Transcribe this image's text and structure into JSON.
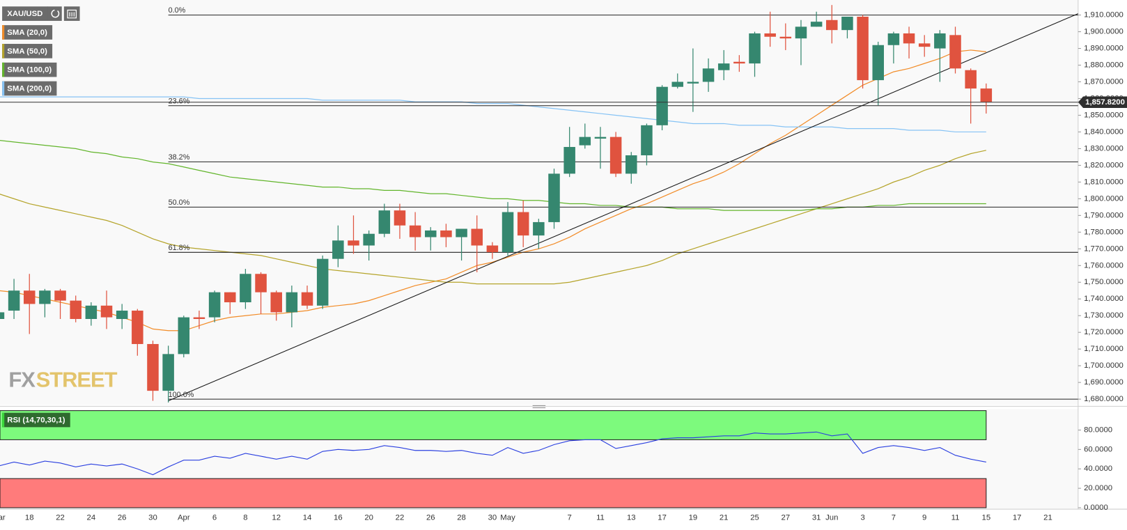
{
  "chart_data": [
    {
      "type": "candlestick",
      "name": "XAU/USD",
      "up_color": "#35876f",
      "down_color": "#e0533f",
      "categories": [
        "Mar",
        null,
        "18",
        null,
        "22",
        null,
        "24",
        null,
        "26",
        null,
        "30",
        null,
        "Apr",
        null,
        "6",
        null,
        "8",
        null,
        "12",
        null,
        "14",
        null,
        "16",
        null,
        "20",
        null,
        "22",
        null,
        "26",
        null,
        "28",
        null,
        "30",
        "May",
        null,
        null,
        null,
        "7",
        null,
        "11",
        null,
        "13",
        null,
        "17",
        null,
        "19",
        null,
        "21",
        null,
        "25",
        null,
        "27",
        null,
        "31",
        "Jun",
        null,
        "3",
        null,
        "7",
        null,
        "9",
        null,
        "11",
        null,
        "15",
        null,
        "17",
        null,
        "21"
      ],
      "open": [
        1728,
        1733,
        1745,
        1737,
        1745,
        1739,
        1728,
        1736,
        1728,
        1733,
        1713,
        1685,
        1707,
        1729,
        1729,
        1744,
        1738,
        1755,
        1744,
        1732,
        1744,
        1736,
        1764,
        1775,
        1772,
        1779,
        1793,
        1784,
        1777,
        1781,
        1777,
        1782,
        1772,
        1768,
        1792,
        1778,
        1786,
        1815,
        1832,
        1836,
        1837,
        1815,
        1826,
        1844,
        1867,
        1869,
        1870,
        1877,
        1882,
        1881,
        1899,
        1897,
        1896,
        1903,
        1907,
        1901,
        1909,
        1871,
        1892,
        1899,
        1893,
        1890,
        1898,
        1877,
        1866,
        null,
        null,
        null,
        null
      ],
      "high": [
        1738,
        1752,
        1755,
        1746,
        1746,
        1742,
        1738,
        1745,
        1737,
        1734,
        1715,
        1712,
        1730,
        1733,
        1745,
        1744,
        1758,
        1756,
        1745,
        1748,
        1748,
        1766,
        1784,
        1790,
        1781,
        1797,
        1797,
        1792,
        1783,
        1785,
        1782,
        1790,
        1774,
        1798,
        1799,
        1788,
        1818,
        1843,
        1845,
        1843,
        1840,
        1828,
        1845,
        1868,
        1875,
        1890,
        1884,
        1889,
        1886,
        1900,
        1912,
        1905,
        1907,
        1912,
        1916,
        1909,
        1910,
        1894,
        1900,
        1903,
        1898,
        1901,
        1903,
        1878,
        1869,
        null,
        null,
        null,
        null
      ],
      "low": [
        1722,
        1728,
        1719,
        1729,
        1728,
        1726,
        1724,
        1722,
        1722,
        1706,
        1679,
        1678,
        1705,
        1722,
        1726,
        1731,
        1734,
        1731,
        1727,
        1723,
        1734,
        1734,
        1759,
        1767,
        1763,
        1777,
        1776,
        1769,
        1769,
        1771,
        1763,
        1756,
        1764,
        1766,
        1771,
        1770,
        1782,
        1813,
        1830,
        1818,
        1813,
        1809,
        1820,
        1841,
        1866,
        1852,
        1864,
        1871,
        1876,
        1873,
        1891,
        1889,
        1880,
        1903,
        1893,
        1896,
        1866,
        1856,
        1881,
        1884,
        1885,
        1870,
        1875,
        1845,
        1851,
        null,
        null,
        null,
        null
      ],
      "close": [
        1732,
        1745,
        1737,
        1745,
        1739,
        1728,
        1736,
        1729,
        1733,
        1713,
        1685,
        1707,
        1729,
        1728,
        1744,
        1738,
        1755,
        1744,
        1732,
        1744,
        1736,
        1764,
        1775,
        1772,
        1779,
        1793,
        1784,
        1777,
        1781,
        1777,
        1782,
        1772,
        1768,
        1792,
        1778,
        1786,
        1815,
        1831,
        1837,
        1837,
        1815,
        1826,
        1844,
        1867,
        1870,
        1870,
        1878,
        1881,
        1881,
        1899,
        1897,
        1896,
        1903,
        1906,
        1901,
        1909,
        1871,
        1892,
        1899,
        1893,
        1891,
        1899,
        1878,
        1866,
        1858,
        null,
        null,
        null,
        null
      ],
      "overlays": [
        {
          "name": "SMA (20,0)",
          "color": "#f28c28",
          "values": [
            1745,
            1744,
            1742,
            1740,
            1738,
            1736,
            1734,
            1732,
            1729,
            1726,
            1722,
            1721,
            1721,
            1724,
            1727,
            1729,
            1730,
            1731,
            1731,
            1732,
            1733,
            1735,
            1736,
            1737,
            1739,
            1742,
            1745,
            1748,
            1750,
            1752,
            1756,
            1760,
            1762,
            1765,
            1768,
            1770,
            1773,
            1777,
            1782,
            1786,
            1790,
            1794,
            1797,
            1801,
            1805,
            1809,
            1812,
            1816,
            1821,
            1827,
            1833,
            1838,
            1844,
            1850,
            1856,
            1862,
            1868,
            1872,
            1876,
            1878,
            1881,
            1884,
            1888,
            1889,
            1888,
            null,
            null,
            null,
            null
          ]
        },
        {
          "name": "SMA (50,0)",
          "color": "#b5a42a",
          "values": [
            1803,
            1800,
            1797,
            1795,
            1793,
            1791,
            1789,
            1787,
            1784,
            1780,
            1776,
            1773,
            1771,
            1770,
            1769,
            1768,
            1767,
            1766,
            1764,
            1762,
            1760,
            1758,
            1757,
            1756,
            1755,
            1754,
            1753,
            1752,
            1751,
            1750,
            1750,
            1749,
            1749,
            1749,
            1749,
            1749,
            1749,
            1750,
            1752,
            1754,
            1756,
            1758,
            1760,
            1763,
            1767,
            1770,
            1773,
            1776,
            1779,
            1782,
            1785,
            1788,
            1791,
            1794,
            1797,
            1800,
            1803,
            1806,
            1810,
            1813,
            1817,
            1820,
            1824,
            1827,
            1829,
            null,
            null,
            null,
            null
          ]
        },
        {
          "name": "SMA (100,0)",
          "color": "#62b52b",
          "values": [
            1835,
            1834,
            1833,
            1832,
            1831,
            1830,
            1828,
            1827,
            1825,
            1824,
            1822,
            1821,
            1819,
            1817,
            1815,
            1813,
            1812,
            1811,
            1810,
            1809,
            1808,
            1807,
            1807,
            1806,
            1806,
            1805,
            1805,
            1804,
            1803,
            1803,
            1802,
            1801,
            1800,
            1800,
            1799,
            1799,
            1798,
            1797,
            1797,
            1796,
            1796,
            1795,
            1795,
            1795,
            1794,
            1794,
            1794,
            1793,
            1793,
            1793,
            1793,
            1793,
            1793,
            1794,
            1794,
            1795,
            1795,
            1796,
            1796,
            1797,
            1797,
            1797,
            1797,
            1797,
            1797,
            null,
            null,
            null,
            null
          ]
        },
        {
          "name": "SMA (200,0)",
          "color": "#86c3f5",
          "values": [
            1861,
            1861,
            1861,
            1861,
            1861,
            1861,
            1861,
            1861,
            1861,
            1861,
            1861,
            1861,
            1861,
            1860,
            1860,
            1860,
            1860,
            1860,
            1860,
            1860,
            1860,
            1859,
            1859,
            1859,
            1859,
            1859,
            1859,
            1858,
            1858,
            1858,
            1858,
            1857,
            1857,
            1857,
            1856,
            1855,
            1854,
            1853,
            1852,
            1851,
            1850,
            1849,
            1848,
            1847,
            1846,
            1845,
            1845,
            1845,
            1844,
            1844,
            1844,
            1843,
            1843,
            1843,
            1843,
            1842,
            1842,
            1842,
            1842,
            1841,
            1841,
            1841,
            1840,
            1840,
            1840,
            null,
            null,
            null,
            null
          ]
        }
      ],
      "fib_levels": [
        {
          "value": 1910,
          "label": "0.0%"
        },
        {
          "value": 1855.7,
          "label": "23.6%"
        },
        {
          "value": 1822.1,
          "label": "38.2%"
        },
        {
          "value": 1795,
          "label": "50.0%"
        },
        {
          "value": 1767.9,
          "label": "61.8%"
        },
        {
          "value": 1680,
          "label": "100.0%"
        }
      ],
      "trendline": [
        {
          "x": 11,
          "y": 1679
        },
        {
          "x": 70,
          "y": 1911
        }
      ],
      "last_price": {
        "value": 1857.82,
        "label": "1,857.8200"
      },
      "watermark": [
        "FX",
        "STREET"
      ],
      "ylim": [
        1677,
        1919
      ],
      "yticks": [
        {
          "value": 1680,
          "label": "1,680.0000"
        },
        {
          "value": 1690,
          "label": "1,690.0000"
        },
        {
          "value": 1700,
          "label": "1,700.0000"
        },
        {
          "value": 1710,
          "label": "1,710.0000"
        },
        {
          "value": 1720,
          "label": "1,720.0000"
        },
        {
          "value": 1730,
          "label": "1,730.0000"
        },
        {
          "value": 1740,
          "label": "1,740.0000"
        },
        {
          "value": 1750,
          "label": "1,750.0000"
        },
        {
          "value": 1760,
          "label": "1,760.0000"
        },
        {
          "value": 1770,
          "label": "1,770.0000"
        },
        {
          "value": 1780,
          "label": "1,780.0000"
        },
        {
          "value": 1790,
          "label": "1,790.0000"
        },
        {
          "value": 1800,
          "label": "1,800.0000"
        },
        {
          "value": 1810,
          "label": "1,810.0000"
        },
        {
          "value": 1820,
          "label": "1,820.0000"
        },
        {
          "value": 1830,
          "label": "1,830.0000"
        },
        {
          "value": 1840,
          "label": "1,840.0000"
        },
        {
          "value": 1850,
          "label": "1,850.0000"
        },
        {
          "value": 1860,
          "label": "1,860.0000"
        },
        {
          "value": 1870,
          "label": "1,870.0000"
        },
        {
          "value": 1880,
          "label": "1,880.0000"
        },
        {
          "value": 1890,
          "label": "1,890.0000"
        },
        {
          "value": 1900,
          "label": "1,900.0000"
        },
        {
          "value": 1910,
          "label": "1,910.0000"
        }
      ]
    },
    {
      "type": "line",
      "name": "RSI (14,70,30,1)",
      "color": "#2a3fe0",
      "values": [
        43,
        47,
        44,
        48,
        46,
        42,
        45,
        43,
        45,
        40,
        34,
        42,
        49,
        49,
        53,
        51,
        56,
        53,
        50,
        53,
        50,
        58,
        60,
        59,
        60,
        64,
        62,
        59,
        59,
        58,
        59,
        56,
        54,
        62,
        56,
        59,
        65,
        69,
        70,
        70,
        61,
        64,
        67,
        71,
        72,
        72,
        73,
        74,
        74,
        77,
        76,
        76,
        77,
        78,
        74,
        76,
        56,
        62,
        64,
        62,
        59,
        62,
        54,
        50,
        47,
        null,
        null,
        null,
        null
      ],
      "bands": [
        {
          "range": [
            70,
            100
          ],
          "color": "#7dfa7d"
        },
        {
          "range": [
            0,
            30
          ],
          "color": "#ff7b7b"
        }
      ],
      "ylim": [
        0,
        100
      ],
      "yticks": [
        {
          "value": 0,
          "label": "0.0000"
        },
        {
          "value": 20,
          "label": "20.0000"
        },
        {
          "value": 40,
          "label": "40.0000"
        },
        {
          "value": 60,
          "label": "60.0000"
        },
        {
          "value": 80,
          "label": "80.0000"
        }
      ]
    }
  ]
}
